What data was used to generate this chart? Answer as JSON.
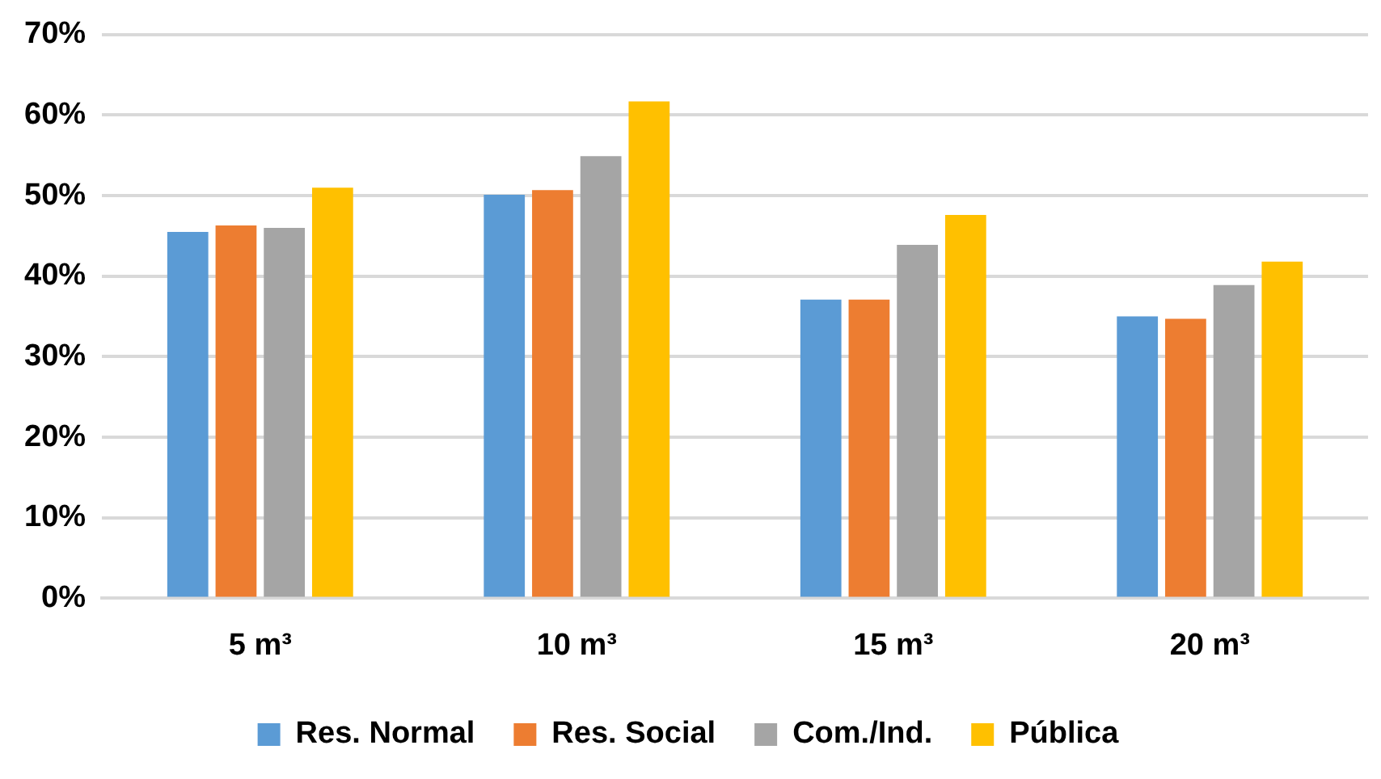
{
  "chart_data": {
    "type": "bar",
    "categories": [
      "5 m³",
      "10 m³",
      "15 m³",
      "20 m³"
    ],
    "series": [
      {
        "name": "Res. Normal",
        "color": "#5b9bd5",
        "values": [
          45.5,
          50.1,
          37.1,
          35.0
        ]
      },
      {
        "name": "Res. Social",
        "color": "#ed7d31",
        "values": [
          46.3,
          50.7,
          37.1,
          34.7
        ]
      },
      {
        "name": "Com./Ind.",
        "color": "#a5a5a5",
        "values": [
          46.0,
          54.9,
          43.9,
          38.9
        ]
      },
      {
        "name": "Pública",
        "color": "#ffc000",
        "values": [
          51.0,
          61.7,
          47.6,
          41.8
        ]
      }
    ],
    "ylim": [
      0,
      70
    ],
    "yticks": [
      {
        "value": 0,
        "label": "0%"
      },
      {
        "value": 10,
        "label": "10%"
      },
      {
        "value": 20,
        "label": "20%"
      },
      {
        "value": 30,
        "label": "30%"
      },
      {
        "value": 40,
        "label": "40%"
      },
      {
        "value": 50,
        "label": "50%"
      },
      {
        "value": 60,
        "label": "60%"
      },
      {
        "value": 70,
        "label": "70%"
      }
    ],
    "grid": "y",
    "legend": "bottom"
  }
}
